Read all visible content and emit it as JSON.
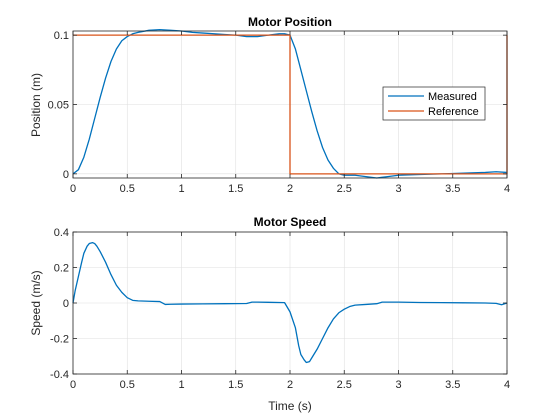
{
  "chart_data": [
    {
      "type": "line",
      "title": "Motor Position",
      "xlabel": "",
      "ylabel": "Position (m)",
      "xlim": [
        0,
        4
      ],
      "ylim": [
        -0.003,
        0.103
      ],
      "xticks": [
        0,
        0.5,
        1,
        1.5,
        2,
        2.5,
        3,
        3.5,
        4
      ],
      "xtick_labels": [
        "0",
        "0.5",
        "1",
        "1.5",
        "2",
        "2.5",
        "3",
        "3.5",
        "4"
      ],
      "yticks": [
        0,
        0.05,
        0.1
      ],
      "ytick_labels": [
        "0",
        "0.05",
        "0.1"
      ],
      "grid": true,
      "legend_position": "right",
      "series": [
        {
          "name": "Measured",
          "color": "#0072BD",
          "x": [
            0,
            0.05,
            0.1,
            0.15,
            0.2,
            0.25,
            0.3,
            0.35,
            0.4,
            0.45,
            0.5,
            0.55,
            0.6,
            0.7,
            0.8,
            0.9,
            1.0,
            1.1,
            1.2,
            1.3,
            1.4,
            1.5,
            1.6,
            1.7,
            1.8,
            1.9,
            1.95,
            2.0,
            2.05,
            2.1,
            2.15,
            2.2,
            2.25,
            2.3,
            2.35,
            2.4,
            2.45,
            2.5,
            2.55,
            2.6,
            2.7,
            2.8,
            2.9,
            3.0,
            3.2,
            3.4,
            3.6,
            3.8,
            3.9,
            4.0
          ],
          "y": [
            0.0,
            0.003,
            0.012,
            0.025,
            0.04,
            0.055,
            0.069,
            0.081,
            0.09,
            0.096,
            0.099,
            0.101,
            0.102,
            0.1035,
            0.104,
            0.1035,
            0.103,
            0.102,
            0.1015,
            0.101,
            0.1005,
            0.1,
            0.099,
            0.099,
            0.1,
            0.101,
            0.101,
            0.1,
            0.09,
            0.075,
            0.06,
            0.045,
            0.031,
            0.019,
            0.01,
            0.004,
            0.0,
            -0.001,
            -0.001,
            -0.001,
            -0.002,
            -0.003,
            -0.002,
            -0.001,
            -0.0005,
            0.0,
            0.0005,
            0.001,
            0.0015,
            0.001
          ]
        },
        {
          "name": "Reference",
          "color": "#D95319",
          "x": [
            0,
            2,
            2,
            4,
            4
          ],
          "y": [
            0.1,
            0.1,
            0.0,
            0.0,
            0.1
          ]
        }
      ]
    },
    {
      "type": "line",
      "title": "Motor Speed",
      "xlabel": "Time (s)",
      "ylabel": "Speed (m/s)",
      "xlim": [
        0,
        4
      ],
      "ylim": [
        -0.4,
        0.4
      ],
      "xticks": [
        0,
        0.5,
        1,
        1.5,
        2,
        2.5,
        3,
        3.5,
        4
      ],
      "xtick_labels": [
        "0",
        "0.5",
        "1",
        "1.5",
        "2",
        "2.5",
        "3",
        "3.5",
        "4"
      ],
      "yticks": [
        -0.4,
        -0.2,
        0,
        0.2,
        0.4
      ],
      "ytick_labels": [
        "-0.4",
        "-0.2",
        "0",
        "0.2",
        "0.4"
      ],
      "grid": true,
      "series": [
        {
          "color": "#0072BD",
          "x": [
            0,
            0.02,
            0.05,
            0.08,
            0.1,
            0.13,
            0.15,
            0.18,
            0.2,
            0.22,
            0.25,
            0.3,
            0.35,
            0.4,
            0.45,
            0.5,
            0.55,
            0.6,
            0.7,
            0.8,
            0.85,
            0.9,
            1.0,
            1.2,
            1.4,
            1.6,
            1.65,
            1.7,
            1.8,
            1.95,
            2.0,
            2.05,
            2.08,
            2.1,
            2.13,
            2.15,
            2.18,
            2.2,
            2.25,
            2.3,
            2.35,
            2.4,
            2.45,
            2.5,
            2.55,
            2.6,
            2.7,
            2.8,
            2.85,
            3.0,
            3.2,
            3.4,
            3.6,
            3.8,
            3.9,
            3.95,
            4.0
          ],
          "y": [
            0.0,
            0.07,
            0.15,
            0.23,
            0.28,
            0.32,
            0.335,
            0.34,
            0.335,
            0.32,
            0.29,
            0.23,
            0.16,
            0.1,
            0.06,
            0.03,
            0.015,
            0.012,
            0.01,
            0.008,
            -0.008,
            -0.007,
            -0.006,
            -0.005,
            -0.004,
            -0.003,
            0.005,
            0.005,
            0.004,
            0.002,
            -0.05,
            -0.14,
            -0.24,
            -0.29,
            -0.32,
            -0.335,
            -0.33,
            -0.31,
            -0.26,
            -0.2,
            -0.14,
            -0.09,
            -0.055,
            -0.035,
            -0.02,
            -0.012,
            -0.008,
            -0.004,
            0.005,
            0.005,
            0.003,
            0.002,
            0.001,
            0.0,
            -0.002,
            -0.01,
            0.0
          ]
        }
      ]
    }
  ]
}
